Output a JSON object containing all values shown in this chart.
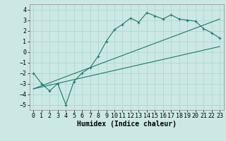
{
  "title": "",
  "xlabel": "Humidex (Indice chaleur)",
  "bg_color": "#cce8e4",
  "line_color": "#1a7a6e",
  "grid_color": "#aad4cc",
  "xlim": [
    -0.5,
    23.5
  ],
  "ylim": [
    -5.5,
    4.5
  ],
  "xticks": [
    0,
    1,
    2,
    3,
    4,
    5,
    6,
    7,
    8,
    9,
    10,
    11,
    12,
    13,
    14,
    15,
    16,
    17,
    18,
    19,
    20,
    21,
    22,
    23
  ],
  "yticks": [
    -5,
    -4,
    -3,
    -2,
    -1,
    0,
    1,
    2,
    3,
    4
  ],
  "line1_x": [
    0,
    23
  ],
  "line1_y": [
    -3.5,
    0.5
  ],
  "line2_x": [
    0,
    23
  ],
  "line2_y": [
    -3.5,
    3.1
  ],
  "curve_x": [
    0,
    1,
    2,
    3,
    4,
    5,
    6,
    7,
    8,
    9,
    10,
    11,
    12,
    13,
    14,
    15,
    16,
    17,
    18,
    19,
    20,
    21,
    22,
    23
  ],
  "curve_y": [
    -2.0,
    -3.0,
    -3.7,
    -3.0,
    -5.0,
    -2.8,
    -2.0,
    -1.5,
    -0.4,
    1.0,
    2.1,
    2.6,
    3.2,
    2.8,
    3.7,
    3.4,
    3.1,
    3.5,
    3.1,
    3.0,
    2.9,
    2.2,
    1.8,
    1.3
  ],
  "font_family": "monospace",
  "axis_fontsize": 6,
  "xlabel_fontsize": 7
}
